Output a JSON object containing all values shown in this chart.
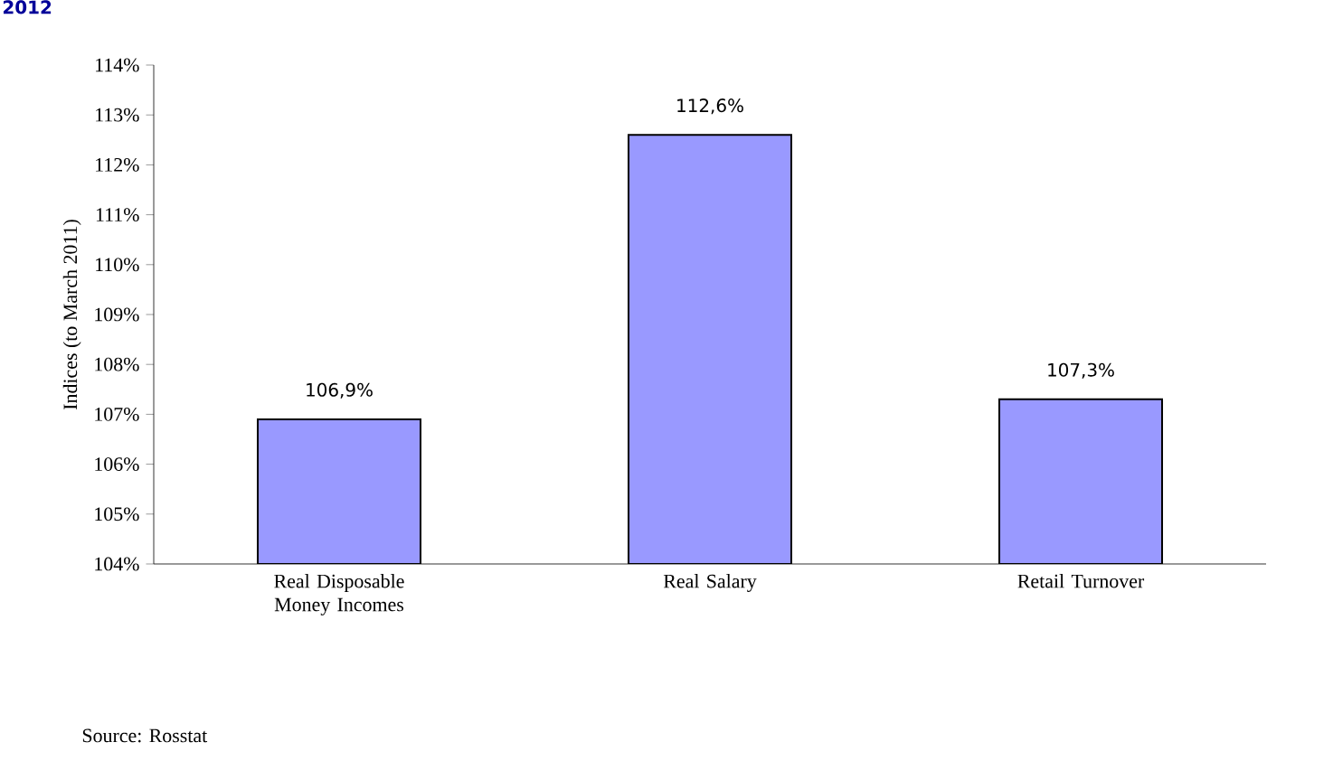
{
  "chart_data": {
    "type": "bar",
    "title": "2012",
    "ylabel": "Indices (to March 2011)",
    "categories": [
      "Real Disposable Money Incomes",
      "Real Salary",
      "Retail Turnover"
    ],
    "values": [
      106.9,
      112.6,
      107.3
    ],
    "value_labels": [
      "106,9%",
      "112,6%",
      "107,3%"
    ],
    "color": "#9999ff",
    "ylim": [
      104,
      114
    ],
    "yticks": [
      {
        "value": 104,
        "label": "104%"
      },
      {
        "value": 105,
        "label": "105%"
      },
      {
        "value": 106,
        "label": "106%"
      },
      {
        "value": 107,
        "label": "107%"
      },
      {
        "value": 108,
        "label": "108%"
      },
      {
        "value": 109,
        "label": "109%"
      },
      {
        "value": 110,
        "label": "110%"
      },
      {
        "value": 111,
        "label": "111%"
      },
      {
        "value": 112,
        "label": "112%"
      },
      {
        "value": 113,
        "label": "113%"
      },
      {
        "value": 114,
        "label": "114%"
      }
    ],
    "annotations": [
      "Source: Rosstat"
    ]
  }
}
